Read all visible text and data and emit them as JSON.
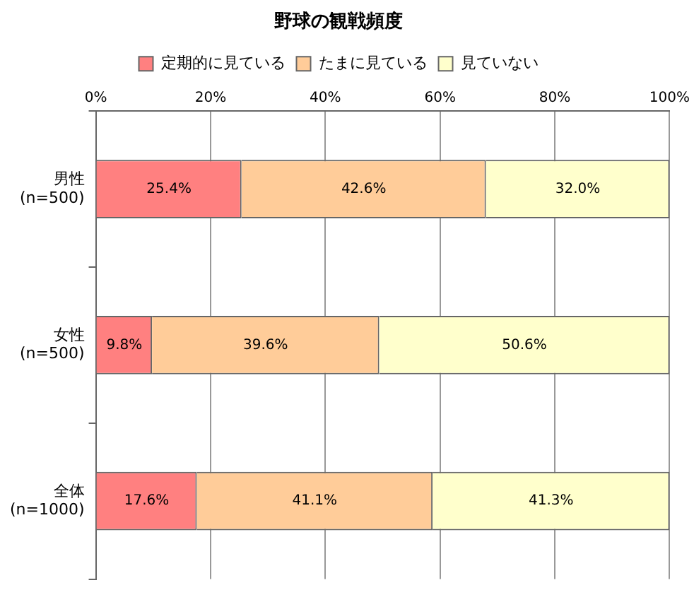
{
  "chart_data": {
    "type": "bar",
    "title": "野球の観戦頻度",
    "orientation": "horizontal",
    "stacked": true,
    "categories": [
      "男性\n(n=500)",
      "女性\n(n=500)",
      "全体\n(n=1000)"
    ],
    "series": [
      {
        "name": "定期的に見ている",
        "color": "#ff8080",
        "values": [
          25.4,
          9.8,
          17.6
        ],
        "value_labels": [
          "25.4%",
          "9.8%",
          "17.6%"
        ]
      },
      {
        "name": "たまに見ている",
        "color": "#ffcc99",
        "values": [
          42.6,
          39.6,
          41.1
        ],
        "value_labels": [
          "42.6%",
          "39.6%",
          "41.1%"
        ]
      },
      {
        "name": "見ていない",
        "color": "#ffffcc",
        "values": [
          32.0,
          50.6,
          41.3
        ],
        "value_labels": [
          "32.0%",
          "50.6%",
          "41.3%"
        ]
      }
    ],
    "xlim": [
      0,
      100
    ],
    "xticks": [
      {
        "value": 0,
        "label": "0%"
      },
      {
        "value": 20,
        "label": "20%"
      },
      {
        "value": 40,
        "label": "40%"
      },
      {
        "value": 60,
        "label": "60%"
      },
      {
        "value": 80,
        "label": "80%"
      },
      {
        "value": 100,
        "label": "100%"
      }
    ],
    "grid": "x",
    "legend": "top"
  }
}
